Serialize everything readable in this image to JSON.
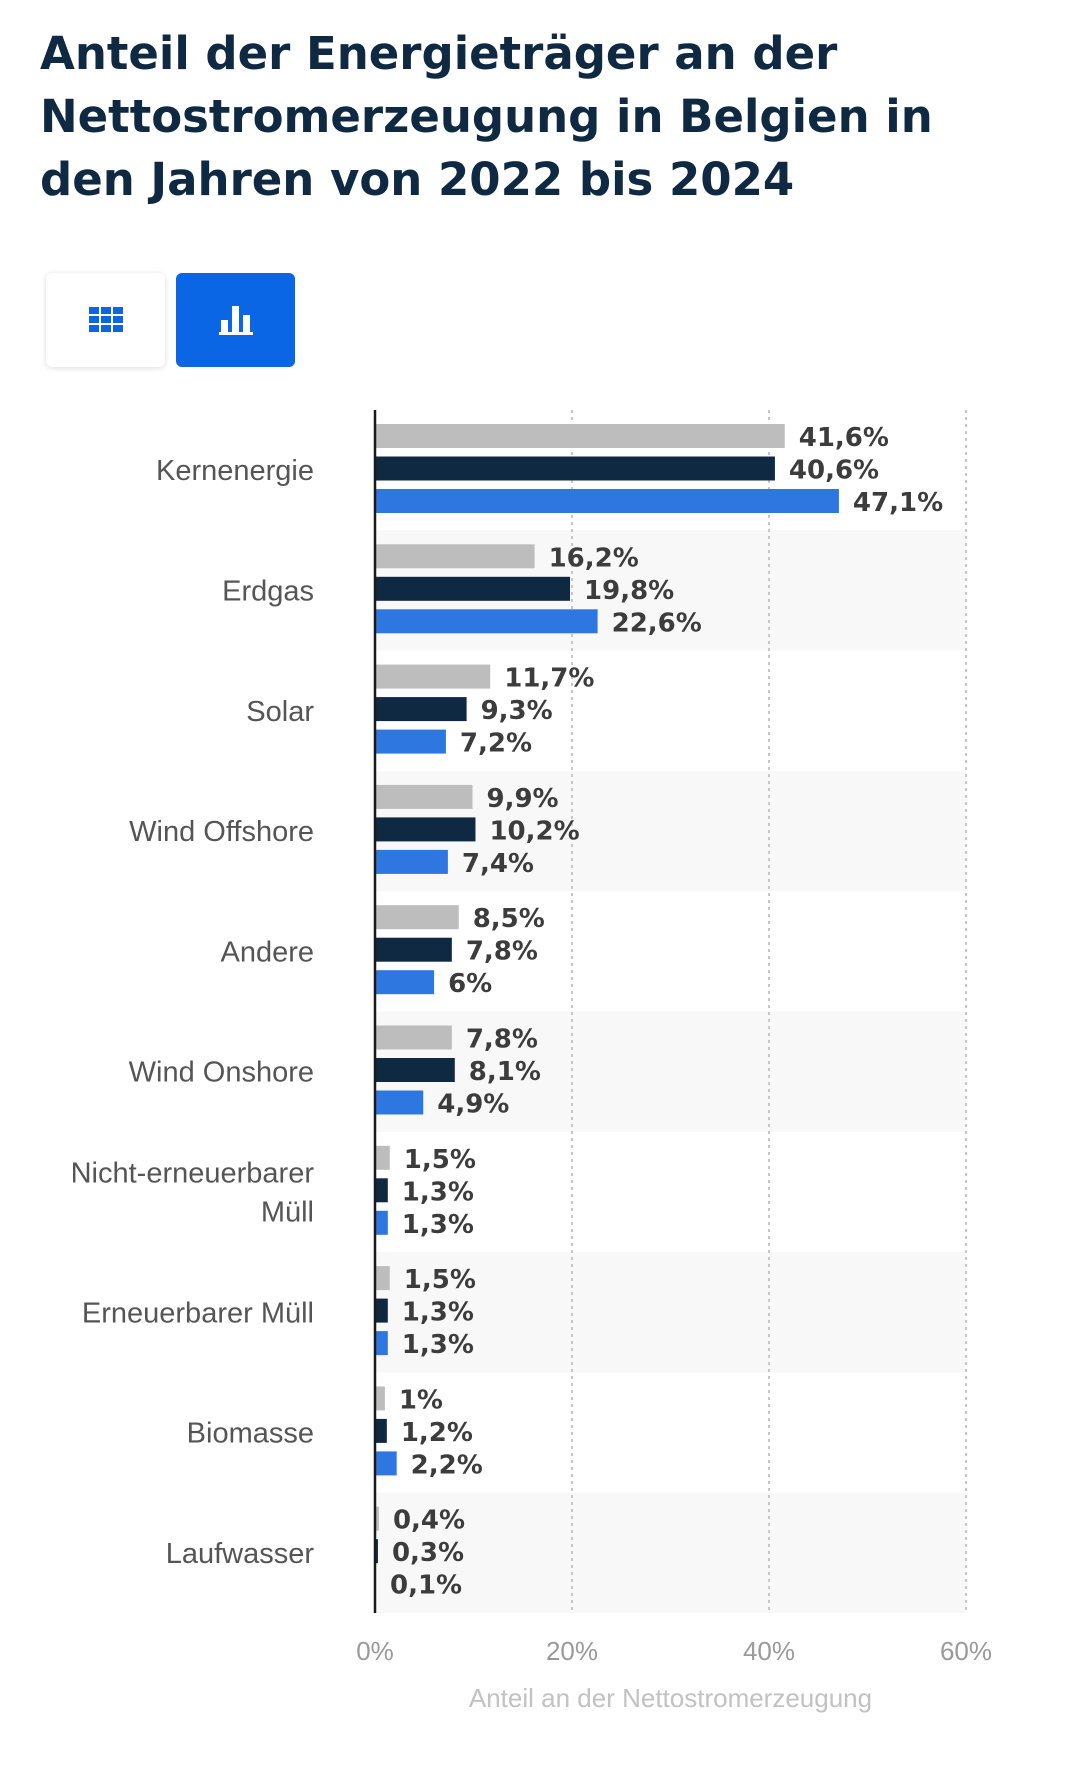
{
  "chart_data": {
    "type": "bar",
    "orientation": "horizontal",
    "title": "Anteil der Energieträger an der Nettostromerzeugung in Belgien in den Jahren von 2022 bis 2024",
    "categories": [
      "Kernenergie",
      "Erdgas",
      "Solar",
      "Wind Offshore",
      "Andere",
      "Wind Onshore",
      "Nicht-erneuerbarer Müll",
      "Erneuerbarer Müll",
      "Biomasse",
      "Laufwasser"
    ],
    "category_lines": [
      [
        "Kernenergie"
      ],
      [
        "Erdgas"
      ],
      [
        "Solar"
      ],
      [
        "Wind Offshore"
      ],
      [
        "Andere"
      ],
      [
        "Wind Onshore"
      ],
      [
        "Nicht-erneuerbarer",
        "Müll"
      ],
      [
        "Erneuerbarer Müll"
      ],
      [
        "Biomasse"
      ],
      [
        "Laufwasser"
      ]
    ],
    "series": [
      {
        "name": "Series 1",
        "color": "#bdbdbd",
        "values": [
          41.6,
          16.2,
          11.7,
          9.9,
          8.5,
          7.8,
          1.5,
          1.5,
          1,
          0.4
        ],
        "labels": [
          "41,6%",
          "16,2%",
          "11,7%",
          "9,9%",
          "8,5%",
          "7,8%",
          "1,5%",
          "1,5%",
          "1%",
          "0,4%"
        ]
      },
      {
        "name": "Series 2",
        "color": "#0f2942",
        "values": [
          40.6,
          19.8,
          9.3,
          10.2,
          7.8,
          8.1,
          1.3,
          1.3,
          1.2,
          0.3
        ],
        "labels": [
          "40,6%",
          "19,8%",
          "9,3%",
          "10,2%",
          "7,8%",
          "8,1%",
          "1,3%",
          "1,3%",
          "1,2%",
          "0,3%"
        ]
      },
      {
        "name": "Series 3",
        "color": "#2f77e0",
        "values": [
          47.1,
          22.6,
          7.2,
          7.4,
          6,
          4.9,
          1.3,
          1.3,
          2.2,
          0.1
        ],
        "labels": [
          "47,1%",
          "22,6%",
          "7,2%",
          "7,4%",
          "6%",
          "4,9%",
          "1,3%",
          "1,3%",
          "2,2%",
          "0,1%"
        ]
      }
    ],
    "xlim": [
      0,
      60
    ],
    "x_ticks": [
      0,
      20,
      40,
      60
    ],
    "x_tick_labels": [
      "0%",
      "20%",
      "40%",
      "60%"
    ],
    "xlabel": "Anteil an der Nettostromerzeugung",
    "ylabel": "",
    "grid": true
  },
  "controls": {
    "table_icon": "grid-icon",
    "chart_icon": "bar-chart-icon",
    "active": "chart",
    "active_color": "#0a66e4"
  }
}
